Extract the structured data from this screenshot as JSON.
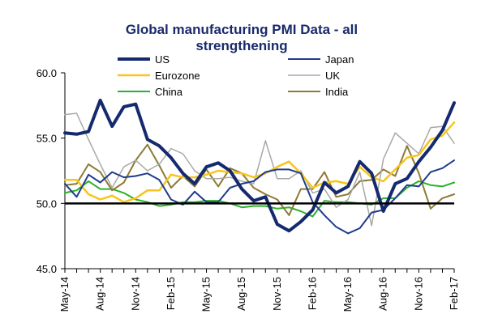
{
  "chart_data": {
    "type": "line",
    "title": "Global manufacturing PMI Data - all strengthening",
    "title_lines": [
      "Global manufacturing PMI Data - all",
      "strengthening"
    ],
    "xlabel": "",
    "ylabel": "",
    "ylim": [
      45,
      60
    ],
    "yticks": [
      "45.0",
      "50.0",
      "55.0",
      "60.0"
    ],
    "ytick_values": [
      45,
      50,
      55,
      60
    ],
    "x_tick_labels": [
      "May-14",
      "Aug-14",
      "Nov-14",
      "Feb-15",
      "May-15",
      "Aug-15",
      "Nov-15",
      "Feb-16",
      "May-16",
      "Aug-16",
      "Nov-16",
      "Feb-17"
    ],
    "x_tick_index": [
      0,
      3,
      6,
      9,
      12,
      15,
      18,
      21,
      24,
      27,
      30,
      33
    ],
    "months": [
      "May-14",
      "Jun-14",
      "Jul-14",
      "Aug-14",
      "Sep-14",
      "Oct-14",
      "Nov-14",
      "Dec-14",
      "Jan-15",
      "Feb-15",
      "Mar-15",
      "Apr-15",
      "May-15",
      "Jun-15",
      "Jul-15",
      "Aug-15",
      "Sep-15",
      "Oct-15",
      "Nov-15",
      "Dec-15",
      "Jan-16",
      "Feb-16",
      "Mar-16",
      "Apr-16",
      "May-16",
      "Jun-16",
      "Jul-16",
      "Aug-16",
      "Sep-16",
      "Oct-16",
      "Nov-16",
      "Dec-16",
      "Jan-17",
      "Feb-17"
    ],
    "reference_line": 50,
    "grid": false,
    "legend_placement": "top",
    "series": [
      {
        "name": "US",
        "color": "#152a6e",
        "width": 4,
        "values": [
          55.4,
          55.3,
          55.5,
          57.9,
          55.9,
          57.4,
          57.6,
          54.9,
          54.4,
          53.5,
          52.3,
          51.5,
          52.8,
          53.1,
          52.5,
          51.1,
          50.2,
          50.5,
          48.4,
          47.9,
          48.6,
          49.5,
          51.6,
          50.8,
          51.3,
          53.2,
          52.3,
          49.4,
          51.5,
          51.9,
          53.2,
          54.3,
          55.6,
          57.7
        ]
      },
      {
        "name": "Japan",
        "color": "#1f3c8c",
        "width": 2,
        "values": [
          51.5,
          50.5,
          52.2,
          51.6,
          52.4,
          52.0,
          52.1,
          52.3,
          51.8,
          50.3,
          49.9,
          50.9,
          50.1,
          50.1,
          51.2,
          51.5,
          51.7,
          52.4,
          52.6,
          52.6,
          52.3,
          50.1,
          49.1,
          48.2,
          47.7,
          48.1,
          49.3,
          49.5,
          50.4,
          51.4,
          51.3,
          52.4,
          52.7,
          53.3
        ]
      },
      {
        "name": "Eurozone",
        "color": "#f7c51b",
        "width": 2.5,
        "values": [
          51.8,
          51.8,
          50.7,
          50.3,
          50.6,
          50.1,
          50.4,
          51.0,
          51.0,
          52.2,
          52.0,
          52.0,
          52.2,
          52.5,
          52.4,
          52.3,
          52.0,
          52.3,
          52.8,
          53.2,
          52.3,
          51.2,
          51.6,
          51.7,
          51.5,
          52.8,
          52.0,
          51.7,
          52.6,
          53.5,
          53.7,
          54.9,
          55.2,
          56.2
        ]
      },
      {
        "name": "UK",
        "color": "#a8a8a8",
        "width": 1.5,
        "values": [
          56.8,
          56.9,
          54.9,
          53.0,
          51.2,
          52.8,
          53.3,
          52.5,
          53.0,
          54.2,
          53.8,
          52.5,
          51.9,
          51.9,
          52.0,
          51.7,
          51.5,
          54.8,
          51.9,
          51.9,
          52.5,
          50.8,
          51.1,
          49.7,
          50.3,
          52.4,
          48.3,
          53.4,
          55.4,
          54.6,
          53.8,
          55.8,
          55.9,
          54.6
        ]
      },
      {
        "name": "China",
        "color": "#2ab32a",
        "width": 2,
        "values": [
          50.8,
          51.0,
          51.7,
          51.1,
          51.1,
          50.8,
          50.3,
          50.1,
          49.8,
          49.9,
          50.1,
          50.1,
          50.2,
          50.2,
          50.0,
          49.7,
          49.8,
          49.8,
          49.6,
          49.7,
          49.4,
          49.0,
          50.2,
          50.1,
          50.1,
          50.0,
          49.9,
          50.4,
          50.4,
          51.2,
          51.7,
          51.4,
          51.3,
          51.6
        ]
      },
      {
        "name": "India",
        "color": "#8e7a34",
        "width": 2,
        "values": [
          51.4,
          51.5,
          53.0,
          52.4,
          51.0,
          51.6,
          53.3,
          54.5,
          52.9,
          51.2,
          52.1,
          51.3,
          52.6,
          51.3,
          52.7,
          52.3,
          51.2,
          50.7,
          50.3,
          49.1,
          51.1,
          51.1,
          52.4,
          50.5,
          50.7,
          51.7,
          51.8,
          52.6,
          52.1,
          54.4,
          52.3,
          49.6,
          50.4,
          50.7
        ]
      }
    ]
  }
}
